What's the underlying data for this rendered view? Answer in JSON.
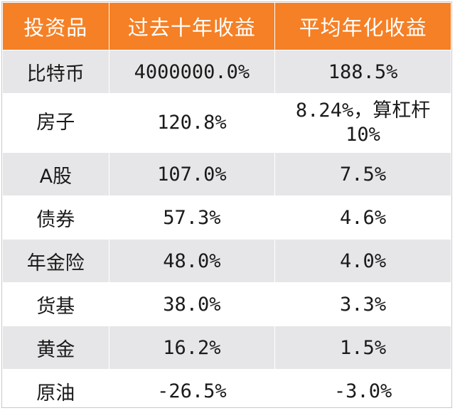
{
  "table": {
    "headers": [
      "投资品",
      "过去十年收益",
      "平均年化收益"
    ],
    "rows": [
      {
        "asset": "比特币",
        "ten_year": "4000000.0%",
        "annual": "188.5%"
      },
      {
        "asset": "房子",
        "ten_year": "120.8%",
        "annual_line1": "8.24%，算杠杆",
        "annual_line2": "10%"
      },
      {
        "asset": "A股",
        "ten_year": "107.0%",
        "annual": "7.5%"
      },
      {
        "asset": "债券",
        "ten_year": "57.3%",
        "annual": "4.6%"
      },
      {
        "asset": "年金险",
        "ten_year": "48.0%",
        "annual": "4.0%"
      },
      {
        "asset": "货基",
        "ten_year": "38.0%",
        "annual": "3.3%"
      },
      {
        "asset": "黄金",
        "ten_year": "16.2%",
        "annual": "1.5%"
      },
      {
        "asset": "原油",
        "ten_year": "-26.5%",
        "annual": "-3.0%"
      }
    ]
  },
  "colors": {
    "header_bg": "#f58025",
    "header_text": "#ffffff",
    "row_shade": "#e6e6e8",
    "row_plain": "#ffffff"
  }
}
